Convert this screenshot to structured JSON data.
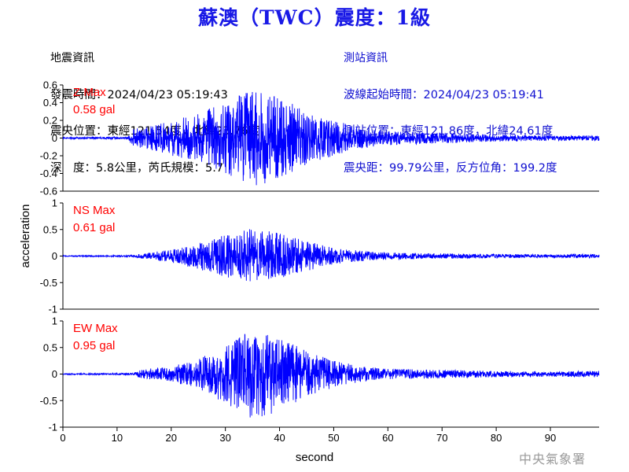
{
  "title": "蘇澳（TWC）震度：1級",
  "event_info": {
    "heading": "地震資訊",
    "origin_time": "發震時間：2024/04/23 05:19:43",
    "epicenter": "震央位置：東經121.54度，北緯23.76度",
    "depth_magnitude": "深　度：5.8公里，芮氏規模：5.7"
  },
  "station_info": {
    "heading": "測站資訊",
    "wave_start": "波線起始時間：2024/04/23 05:19:41",
    "station_location": "測站位置：東經121.86度，北緯24.61度",
    "distance": "震央距：99.79公里，反方位角：199.2度"
  },
  "agency": "中央氣象署",
  "colors": {
    "title": "#1919e6",
    "trace": "#0000ff",
    "max_label": "#ff0000",
    "station_text": "#1010d0"
  },
  "chart_data": {
    "type": "line",
    "xlabel": "second",
    "ylabel": "acceleration",
    "xlim": [
      0,
      99
    ],
    "x_ticks": [
      0,
      10,
      20,
      30,
      40,
      50,
      60,
      70,
      80,
      90
    ],
    "shared_x_axis": true,
    "panels": [
      {
        "name": "Z",
        "label": "Z Max",
        "max_text": "0.58 gal",
        "ylim": [
          -0.6,
          0.6
        ],
        "y_ticks": [
          -0.6,
          -0.4,
          -0.2,
          0,
          0.2,
          0.4,
          0.6
        ],
        "y_tick_labels": [
          "-0.6",
          "-0.4",
          "-0.2",
          "0",
          "0.2",
          "0.4",
          "0.6"
        ],
        "peak": 0.58,
        "envelope": [
          [
            0,
            0.01
          ],
          [
            12,
            0.015
          ],
          [
            13,
            0.1
          ],
          [
            16,
            0.14
          ],
          [
            20,
            0.2
          ],
          [
            25,
            0.28
          ],
          [
            30,
            0.4
          ],
          [
            33,
            0.5
          ],
          [
            35,
            0.55
          ],
          [
            38,
            0.5
          ],
          [
            42,
            0.4
          ],
          [
            45,
            0.3
          ],
          [
            50,
            0.2
          ],
          [
            55,
            0.12
          ],
          [
            60,
            0.08
          ],
          [
            70,
            0.06
          ],
          [
            80,
            0.04
          ],
          [
            90,
            0.03
          ],
          [
            99,
            0.03
          ]
        ]
      },
      {
        "name": "NS",
        "label": "NS Max",
        "max_text": "0.61 gal",
        "ylim": [
          -1,
          1
        ],
        "y_ticks": [
          -1,
          -0.5,
          0,
          0.5,
          1
        ],
        "y_tick_labels": [
          "-1",
          "-0.5",
          "0",
          "0.5",
          "1"
        ],
        "peak": 0.61,
        "envelope": [
          [
            0,
            0.01
          ],
          [
            13,
            0.015
          ],
          [
            14,
            0.04
          ],
          [
            20,
            0.12
          ],
          [
            25,
            0.25
          ],
          [
            30,
            0.4
          ],
          [
            34,
            0.52
          ],
          [
            37,
            0.5
          ],
          [
            41,
            0.4
          ],
          [
            45,
            0.28
          ],
          [
            50,
            0.16
          ],
          [
            55,
            0.1
          ],
          [
            60,
            0.07
          ],
          [
            70,
            0.05
          ],
          [
            80,
            0.04
          ],
          [
            90,
            0.03
          ],
          [
            99,
            0.04
          ]
        ]
      },
      {
        "name": "EW",
        "label": "EW Max",
        "max_text": "0.95 gal",
        "ylim": [
          -1,
          1
        ],
        "y_ticks": [
          -1,
          -0.5,
          0,
          0.5,
          1
        ],
        "y_tick_labels": [
          "-1",
          "-0.5",
          "0",
          "0.5",
          "1"
        ],
        "peak": 0.95,
        "envelope": [
          [
            0,
            0.01
          ],
          [
            13,
            0.02
          ],
          [
            14,
            0.08
          ],
          [
            20,
            0.15
          ],
          [
            25,
            0.28
          ],
          [
            30,
            0.55
          ],
          [
            35,
            0.85
          ],
          [
            38,
            0.8
          ],
          [
            42,
            0.6
          ],
          [
            46,
            0.4
          ],
          [
            50,
            0.25
          ],
          [
            55,
            0.15
          ],
          [
            60,
            0.1
          ],
          [
            70,
            0.08
          ],
          [
            80,
            0.06
          ],
          [
            90,
            0.05
          ],
          [
            99,
            0.06
          ]
        ]
      }
    ]
  }
}
